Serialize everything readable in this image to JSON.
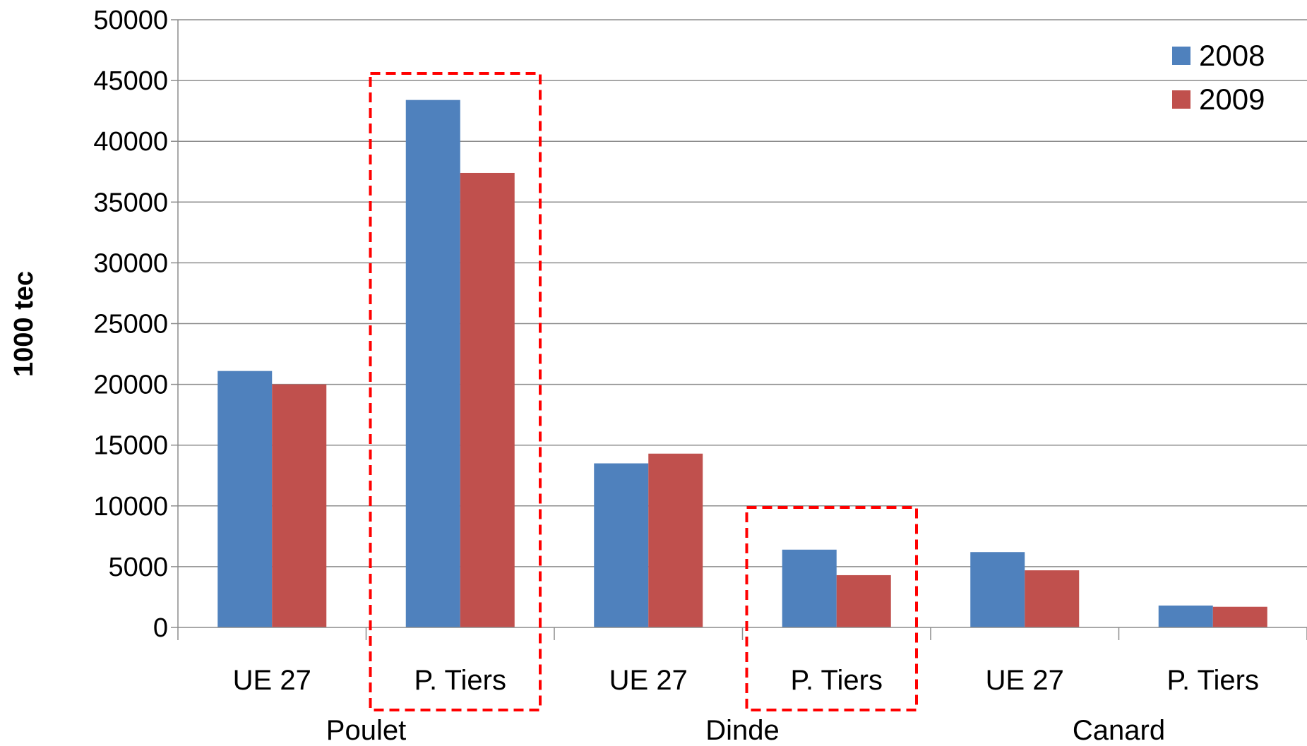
{
  "chart_data": {
    "type": "bar",
    "ylabel": "1000 tec",
    "ylim": [
      0,
      50000
    ],
    "yticks": [
      0,
      5000,
      10000,
      15000,
      20000,
      25000,
      30000,
      35000,
      40000,
      45000,
      50000
    ],
    "grid": true,
    "legend_position": "top-right",
    "categories": [
      "UE 27",
      "P. Tiers",
      "UE 27",
      "P. Tiers",
      "UE 27",
      "P. Tiers"
    ],
    "groups": [
      {
        "label": "Poulet",
        "span": [
          0,
          1
        ]
      },
      {
        "label": "Dinde",
        "span": [
          2,
          3
        ]
      },
      {
        "label": "Canard",
        "span": [
          4,
          5
        ]
      }
    ],
    "series": [
      {
        "name": "2008",
        "color": "#4F81BD",
        "values": [
          21100,
          43400,
          13500,
          6400,
          6200,
          1800
        ]
      },
      {
        "name": "2009",
        "color": "#C0504D",
        "values": [
          20000,
          37400,
          14300,
          4300,
          4700,
          1700
        ]
      }
    ],
    "highlighted_categories": [
      1,
      3
    ],
    "highlight_color": "#FF0000"
  }
}
